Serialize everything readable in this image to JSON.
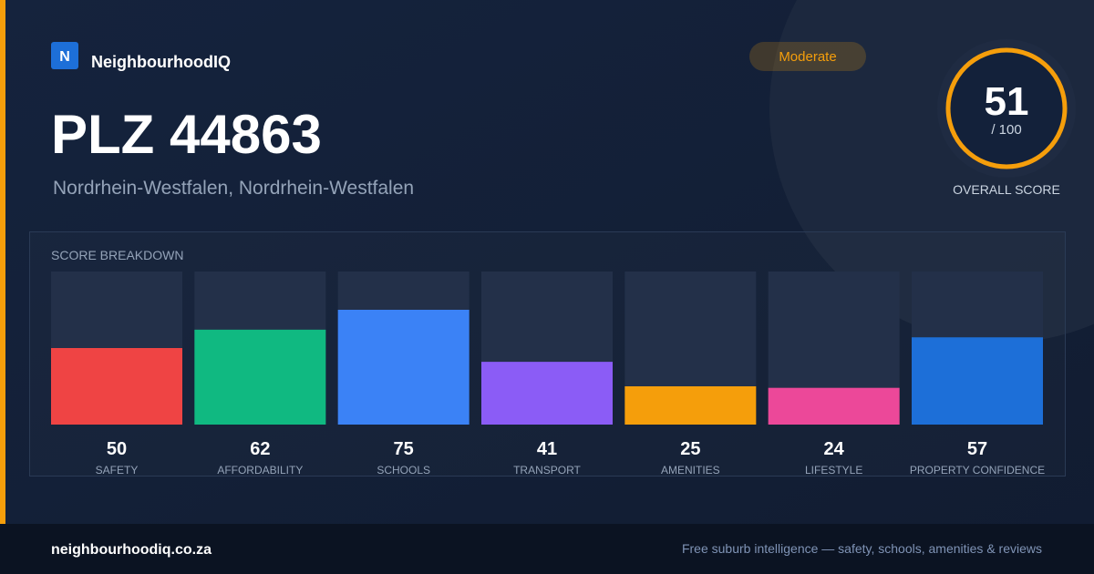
{
  "brand": {
    "logo": "N",
    "name": "NeighbourhoodIQ"
  },
  "badge": "Moderate",
  "title": "PLZ 44863",
  "subtitle": "Nordrhein-Westfalen, Nordrhein-Westfalen",
  "overall": {
    "score": 51,
    "out_of": "/ 100",
    "label": "OVERALL SCORE"
  },
  "chart_data": {
    "type": "bar",
    "title": "SCORE BREAKDOWN",
    "categories": [
      "SAFETY",
      "AFFORDABILITY",
      "SCHOOLS",
      "TRANSPORT",
      "AMENITIES",
      "LIFESTYLE",
      "PROPERTY CONFIDENCE"
    ],
    "values": [
      50,
      62,
      75,
      41,
      25,
      24,
      57
    ],
    "colors": [
      "#ef4444",
      "#10b981",
      "#3b82f6",
      "#8b5cf6",
      "#f59e0b",
      "#ec4899",
      "#1d6fd8"
    ],
    "ylim": [
      0,
      100
    ]
  },
  "footer": {
    "site": "neighbourhoodiq.co.za",
    "tagline": "Free suburb intelligence — safety, schools, amenities & reviews"
  }
}
